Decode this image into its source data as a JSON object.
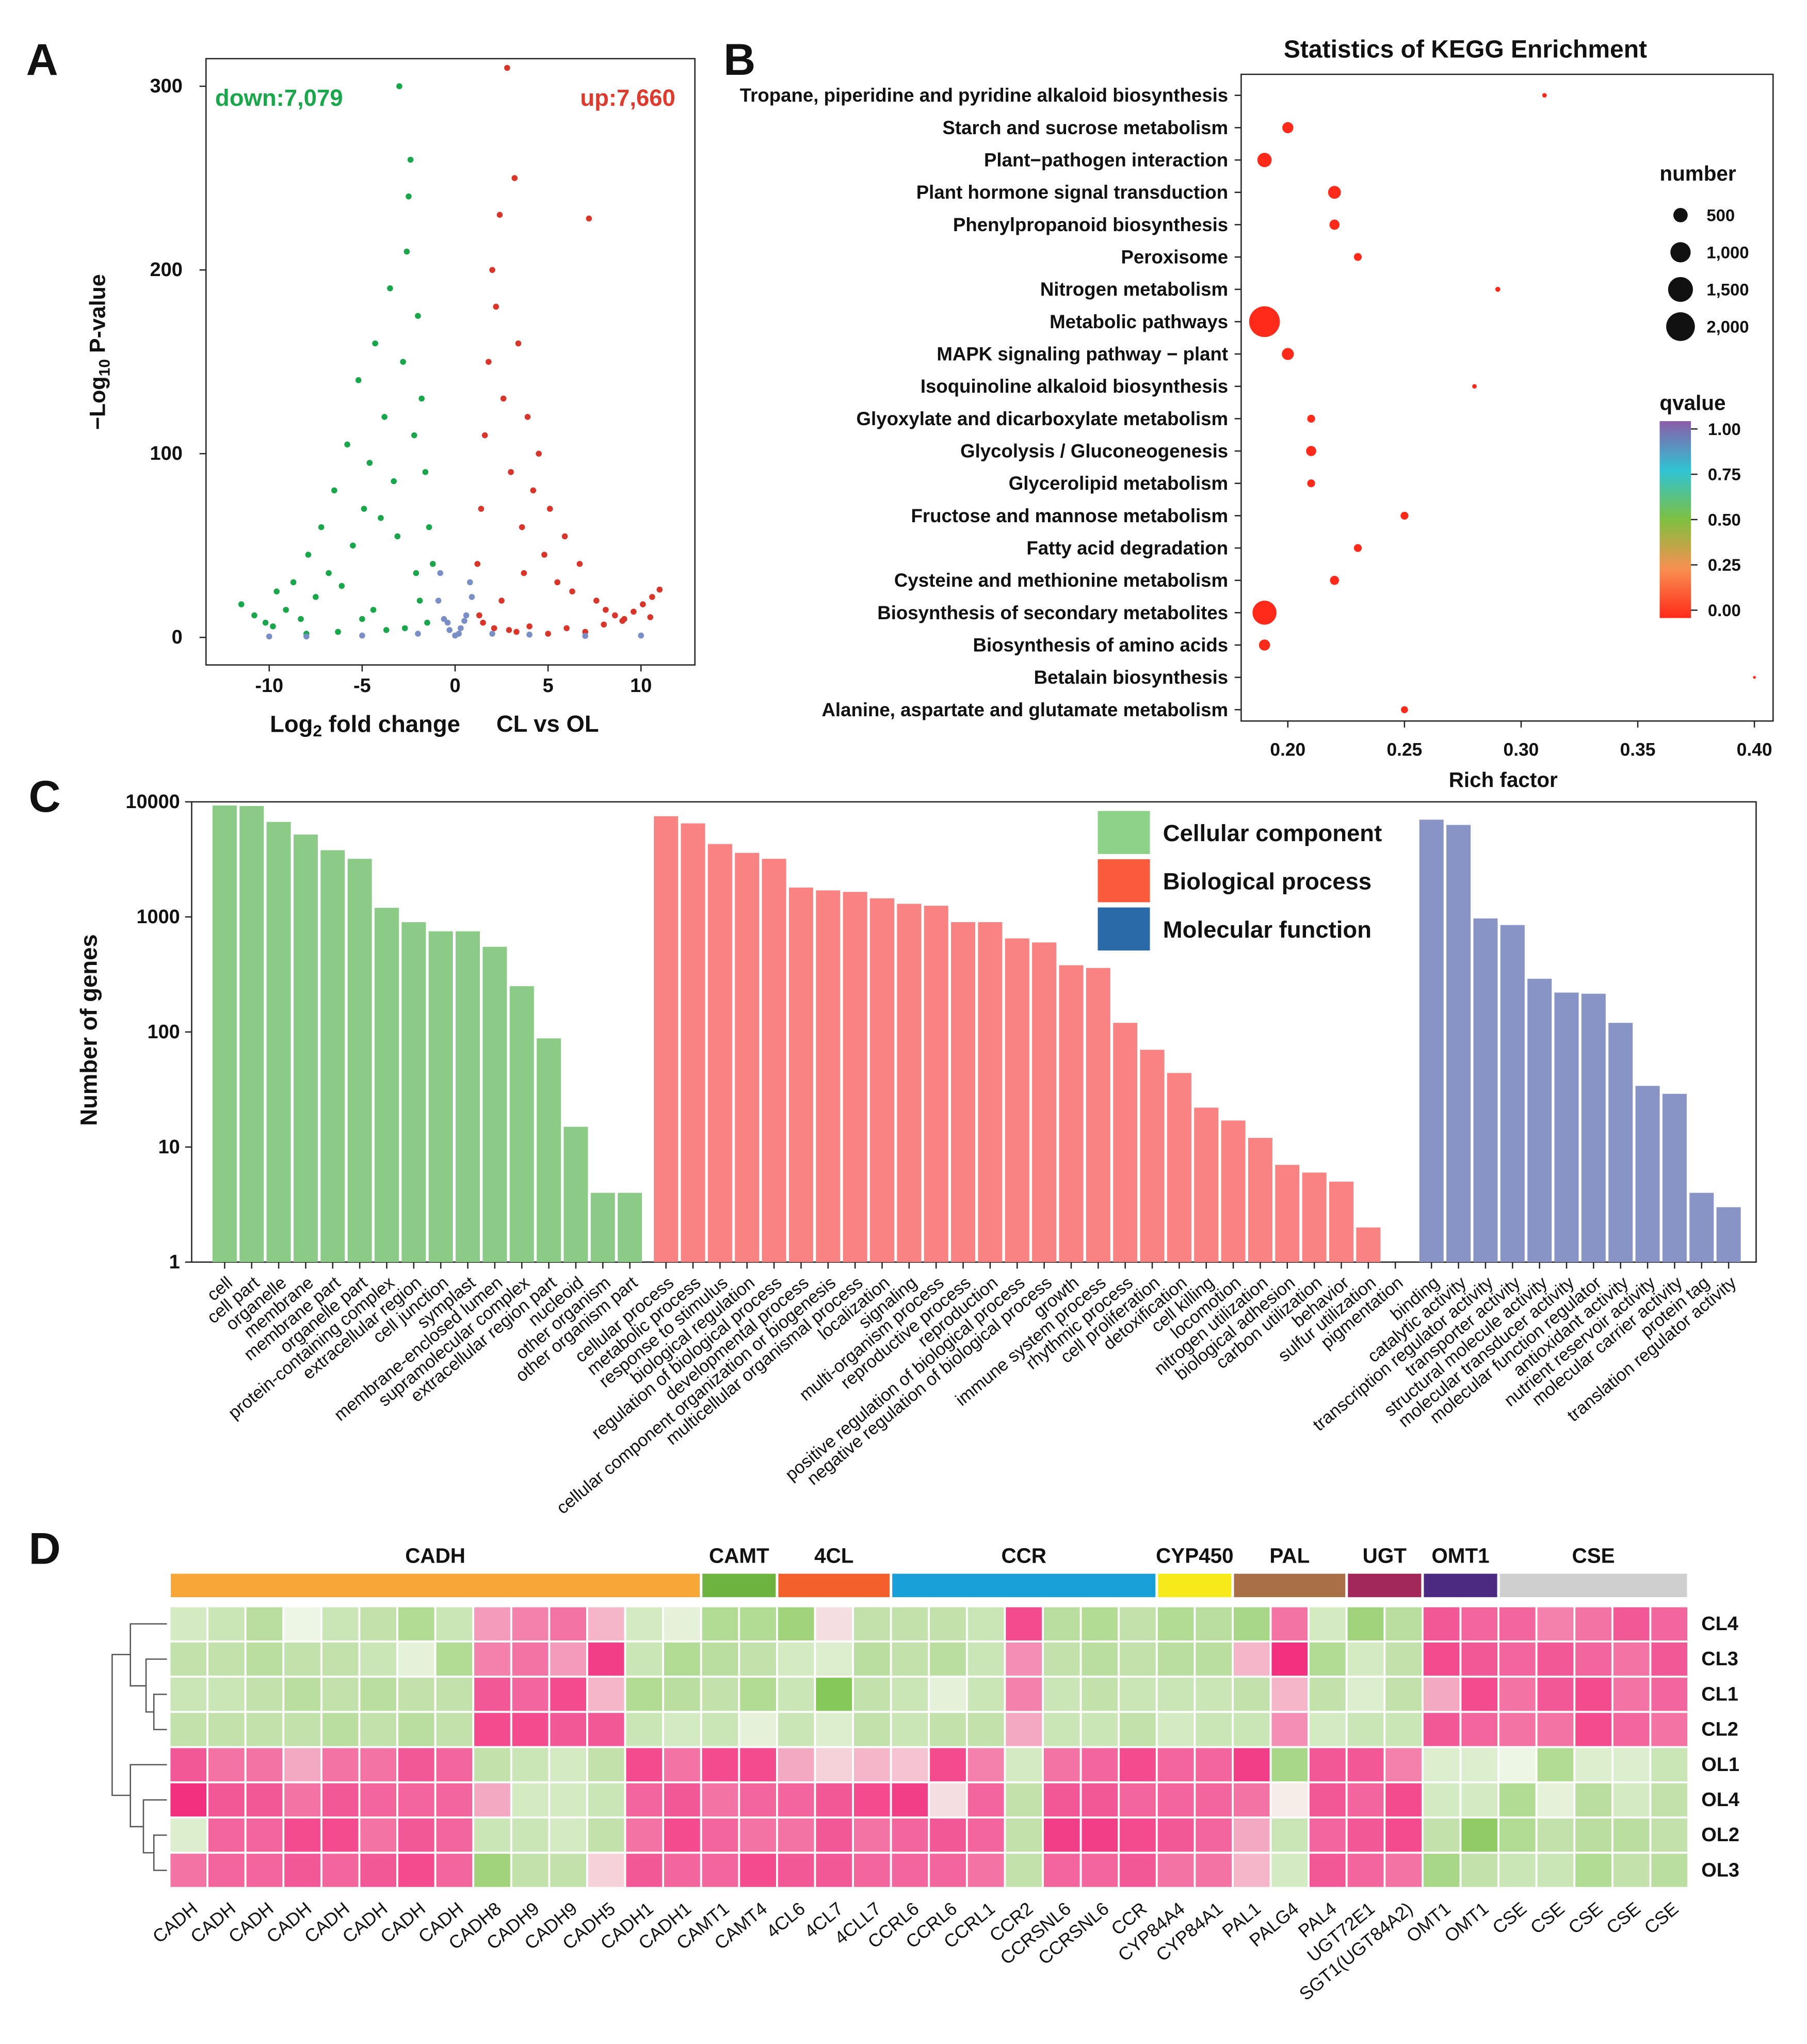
{
  "chart_data": [
    {
      "type": "scatter",
      "panel_label": "A",
      "y_label": {
        "text": "−Log",
        "sub": "10",
        "rest": " P-value"
      },
      "x_label": {
        "text": "Log",
        "sub": "2",
        "rest": " fold change"
      },
      "subtitle": "CL vs OL",
      "annotations": [
        {
          "text": "down:7,079",
          "color": "#1aa64a"
        },
        {
          "text": "up:7,660",
          "color": "#e03a2c"
        }
      ],
      "xlim": [
        -13.4,
        12.9
      ],
      "ylim": [
        -15,
        315
      ],
      "xticks": [
        -10,
        -5,
        0,
        5,
        10
      ],
      "yticks": [
        0,
        100,
        200,
        300
      ],
      "series": [
        {
          "name": "down",
          "color": "#1aa64a",
          "x": [
            -11.5,
            -10.8,
            -10.2,
            -9.6,
            -9.1,
            -8.7,
            -8.3,
            -7.9,
            -7.5,
            -7.2,
            -6.8,
            -6.5,
            -6.1,
            -5.8,
            -5.5,
            -5.2,
            -4.9,
            -4.6,
            -4.3,
            -4.0,
            -3.8,
            -3.5,
            -3.3,
            -3.0,
            -2.8,
            -2.6,
            -2.4,
            -2.2,
            -2.0,
            -1.8,
            -1.6,
            -1.4,
            -1.2,
            -2.5,
            -3.1,
            -2.1,
            -1.9,
            -4.4,
            -5.0,
            -2.7,
            -1.5,
            -3.7,
            -6.3,
            -8.0,
            -9.8
          ],
          "values": [
            18,
            12,
            8,
            25,
            15,
            30,
            10,
            45,
            22,
            60,
            35,
            80,
            28,
            105,
            50,
            140,
            70,
            95,
            160,
            65,
            120,
            190,
            85,
            300,
            150,
            210,
            260,
            110,
            175,
            130,
            90,
            60,
            40,
            240,
            55,
            35,
            20,
            15,
            10,
            5,
            8,
            4,
            3,
            2,
            6
          ]
        },
        {
          "name": "up",
          "color": "#d9352a",
          "x": [
            1.2,
            1.4,
            1.6,
            1.8,
            2.0,
            2.2,
            2.4,
            2.6,
            2.8,
            3.0,
            3.2,
            3.4,
            3.6,
            3.9,
            4.2,
            4.5,
            4.8,
            5.1,
            5.5,
            5.9,
            6.3,
            6.7,
            7.2,
            7.6,
            8.1,
            8.6,
            9.1,
            9.6,
            10.1,
            10.6,
            11.0,
            1.5,
            2.1,
            2.9,
            3.3,
            4.0,
            5.0,
            6.0,
            7.0,
            1.3,
            2.5,
            3.7,
            8.0,
            9.0,
            10.5
          ],
          "values": [
            40,
            70,
            110,
            150,
            200,
            180,
            230,
            130,
            310,
            90,
            250,
            160,
            60,
            120,
            80,
            100,
            45,
            70,
            30,
            55,
            25,
            40,
            228,
            20,
            15,
            12,
            10,
            14,
            18,
            22,
            26,
            8,
            5,
            4,
            3,
            6,
            2,
            5,
            3,
            12,
            20,
            35,
            7,
            9,
            11
          ]
        },
        {
          "name": "not significant",
          "color": "#7b8fc7",
          "x": [
            -0.9,
            -0.6,
            -0.3,
            0,
            0.3,
            0.6,
            0.9,
            -0.8,
            -0.4,
            0.2,
            0.5,
            0.8,
            -5,
            -8,
            4,
            7,
            -10,
            10,
            -2,
            2
          ],
          "values": [
            20,
            10,
            4,
            1,
            5,
            12,
            22,
            35,
            8,
            2,
            9,
            30,
            1,
            0.5,
            1.5,
            0.8,
            0.5,
            1,
            2,
            2
          ]
        }
      ]
    },
    {
      "type": "bubble",
      "panel_label": "B",
      "title": "Statistics of KEGG Enrichment",
      "x_label": "Rich factor",
      "categories": [
        "Tropane, piperidine and pyridine alkaloid biosynthesis",
        "Starch and sucrose metabolism",
        "Plant−pathogen interaction",
        "Plant hormone signal transduction",
        "Phenylpropanoid biosynthesis",
        "Peroxisome",
        "Nitrogen metabolism",
        "Metabolic pathways",
        "MAPK signaling pathway − plant",
        "Isoquinoline alkaloid biosynthesis",
        "Glyoxylate and dicarboxylate metabolism",
        "Glycolysis / Gluconeogenesis",
        "Glycerolipid metabolism",
        "Fructose and mannose metabolism",
        "Fatty acid degradation",
        "Cysteine and methionine metabolism",
        "Biosynthesis of secondary metabolites",
        "Biosynthesis of amino acids",
        "Betalain biosynthesis",
        "Alanine, aspartate and glutamate metabolism"
      ],
      "values": [
        0.31,
        0.2,
        0.19,
        0.22,
        0.22,
        0.23,
        0.29,
        0.19,
        0.2,
        0.28,
        0.21,
        0.21,
        0.21,
        0.25,
        0.23,
        0.22,
        0.19,
        0.19,
        0.4,
        0.25
      ],
      "sizes": [
        50,
        300,
        500,
        400,
        250,
        150,
        60,
        2300,
        350,
        50,
        150,
        250,
        150,
        150,
        150,
        200,
        1400,
        300,
        20,
        120
      ],
      "qvalues": [
        0,
        0,
        0,
        0,
        0,
        0,
        0,
        0,
        0,
        0,
        0,
        0,
        0,
        0,
        0,
        0,
        0,
        0,
        0,
        0
      ],
      "xlim": [
        0.18,
        0.408
      ],
      "xticks": [
        {
          "value": 0.2,
          "label": "0.20"
        },
        {
          "value": 0.25,
          "label": "0.25"
        },
        {
          "value": 0.3,
          "label": "0.30"
        },
        {
          "value": 0.35,
          "label": "0.35"
        },
        {
          "value": 0.4,
          "label": "0.40"
        }
      ],
      "size_title": "number",
      "size_ticks": [
        500,
        {
          "value": 1000,
          "label": "1,000"
        },
        {
          "value": 1500,
          "label": "1,500"
        },
        {
          "value": 2000,
          "label": "2,000"
        }
      ],
      "color_title": "qvalue",
      "clim": [
        0,
        1
      ],
      "cticks": [
        {
          "value": 1,
          "label": "1.00"
        },
        {
          "value": 0.75,
          "label": "0.75"
        },
        {
          "value": 0.5,
          "label": "0.50"
        },
        {
          "value": 0.25,
          "label": "0.25"
        },
        {
          "value": 0,
          "label": "0.00"
        }
      ],
      "colormap": [
        "#ff2a1a",
        "#f89050",
        "#7ec040",
        "#2fc4d4",
        "#8b5ca8"
      ]
    },
    {
      "type": "bar",
      "panel_label": "C",
      "y_label": "Number of genes",
      "log_scale": true,
      "ylim": [
        1,
        10000
      ],
      "yticks": [
        1,
        10,
        100,
        1000,
        10000
      ],
      "series": [
        {
          "name": "Cellular component",
          "color": "#8ccb87",
          "legend_color": "#8ed28a",
          "categories": [
            "cell",
            "cell part",
            "organelle",
            "membrane",
            "membrane part",
            "organelle part",
            "protein-containing complex",
            "extracellular region",
            "cell junction",
            "symplast",
            "membrane-enclosed lumen",
            "supramolecular complex",
            "extracellular region part",
            "nucleoid",
            "other organism",
            "other organism part"
          ],
          "values": [
            9300,
            9200,
            6700,
            5200,
            3800,
            3200,
            1200,
            900,
            750,
            750,
            550,
            250,
            88,
            15,
            4,
            4
          ]
        },
        {
          "name": "Biological process",
          "color": "#f98282",
          "legend_color": "#fb5a3c",
          "categories": [
            "cellular process",
            "metabolic process",
            "response to stimulus",
            "biological regulation",
            "regulation of biological process",
            "developmental process",
            "cellular component organization or biogenesis",
            "multicellular organismal process",
            "localization",
            "signaling",
            "multi-organism process",
            "reproductive process",
            "reproduction",
            "positive regulation of biological process",
            "negative regulation of biological process",
            "growth",
            "immune system process",
            "rhythmic process",
            "cell proliferation",
            "detoxification",
            "cell killing",
            "locomotion",
            "nitrogen utilization",
            "biological adhesion",
            "carbon utilization",
            "behavior",
            "sulfur utilization",
            "pigmentation"
          ],
          "values": [
            7500,
            6500,
            4300,
            3600,
            3200,
            1800,
            1700,
            1650,
            1450,
            1300,
            1250,
            900,
            900,
            650,
            600,
            380,
            360,
            120,
            70,
            44,
            22,
            17,
            12,
            7,
            6,
            5,
            2,
            1
          ]
        },
        {
          "name": "Molecular function",
          "color": "#8893c6",
          "legend_color": "#2b6aa8",
          "categories": [
            "binding",
            "catalytic activity",
            "transcription regulator activity",
            "transporter activity",
            "structural molecule activity",
            "molecular transducer activity",
            "molecular function regulator",
            "antioxidant activity",
            "nutrient reservoir activity",
            "molecular carrier activity",
            "protein tag",
            "translation regulator activity"
          ],
          "values": [
            7000,
            6300,
            970,
            850,
            290,
            220,
            215,
            120,
            34,
            29,
            4,
            3
          ]
        }
      ]
    },
    {
      "type": "heatmap",
      "panel_label": "D",
      "rows": [
        "CL4",
        "CL3",
        "CL1",
        "CL2",
        "OL1",
        "OL4",
        "OL2",
        "OL3"
      ],
      "columns": [
        "CADH",
        "CADH",
        "CADH",
        "CADH",
        "CADH",
        "CADH",
        "CADH",
        "CADH",
        "CADH8",
        "CADH9",
        "CADH9",
        "CADH5",
        "CADH1",
        "CADH1",
        "CAMT1",
        "CAMT4",
        "4CL6",
        "4CL7",
        "4CLL7",
        "CCRL6",
        "CCRL6",
        "CCRL1",
        "CCR2",
        "CCRSNL6",
        "CCRSNL6",
        "CCR",
        "CYP84A4",
        "CYP84A1",
        "PAL1",
        "PALG4",
        "PAL4",
        "UGT72E1",
        "SGT1(UGT84A2)",
        "OMT1",
        "OMT1",
        "CSE",
        "CSE",
        "CSE",
        "CSE",
        "CSE"
      ],
      "groups": [
        {
          "name": "CADH",
          "color": "#f7a738",
          "count": 14
        },
        {
          "name": "CAMT",
          "color": "#6db33f",
          "count": 2
        },
        {
          "name": "4CL",
          "color": "#f4602c",
          "count": 3
        },
        {
          "name": "CCR",
          "color": "#1aa0d8",
          "count": 7
        },
        {
          "name": "CYP450",
          "color": "#f6ea1b",
          "count": 2
        },
        {
          "name": "PAL",
          "color": "#a97048",
          "count": 3
        },
        {
          "name": "UGT",
          "color": "#a3285a",
          "count": 2
        },
        {
          "name": "OMT1",
          "color": "#4c2a82",
          "count": 2
        },
        {
          "name": "CSE",
          "color": "#cfcfcf",
          "count": 5
        }
      ],
      "clim": [
        -1.5,
        1.5
      ],
      "color_low": "#76c043",
      "color_mid": "#f6f9f0",
      "color_high": "#f2307f",
      "values": [
        [
          -0.4,
          -0.5,
          -0.7,
          -0.1,
          -0.5,
          -0.6,
          -0.8,
          -0.5,
          0.7,
          0.9,
          1.0,
          0.5,
          -0.4,
          -0.2,
          -0.8,
          -0.8,
          -1.0,
          0.2,
          -0.6,
          -0.6,
          -0.6,
          -0.5,
          1.3,
          -0.7,
          -0.8,
          -0.6,
          -0.8,
          -0.7,
          -0.9,
          1.0,
          -0.4,
          -1.0,
          -0.7,
          1.2,
          1.1,
          1.1,
          0.9,
          1.0,
          1.2,
          1.1
        ],
        [
          -0.6,
          -0.6,
          -0.7,
          -0.6,
          -0.6,
          -0.5,
          -0.2,
          -0.8,
          0.9,
          1.0,
          0.7,
          1.4,
          -0.5,
          -0.8,
          -0.7,
          -0.6,
          -0.4,
          -0.3,
          -0.7,
          -0.6,
          -0.7,
          -0.5,
          0.8,
          -0.6,
          -0.7,
          -0.6,
          -0.7,
          -0.7,
          0.5,
          1.5,
          -0.8,
          -0.4,
          -0.6,
          1.3,
          1.2,
          1.1,
          1.2,
          1.1,
          1.0,
          1.2
        ],
        [
          -0.5,
          -0.5,
          -0.6,
          -0.7,
          -0.6,
          -0.7,
          -0.6,
          -0.6,
          1.2,
          1.1,
          1.3,
          0.5,
          -0.8,
          -0.7,
          -0.6,
          -0.8,
          -0.5,
          -1.3,
          -0.6,
          -0.5,
          -0.2,
          -0.5,
          0.9,
          -0.5,
          -0.6,
          -0.5,
          -0.5,
          -0.5,
          -0.6,
          0.5,
          -0.6,
          -0.3,
          -0.6,
          0.6,
          1.3,
          1.0,
          1.2,
          1.3,
          1.0,
          1.1
        ],
        [
          -0.6,
          -0.6,
          -0.6,
          -0.6,
          -0.7,
          -0.6,
          -0.7,
          -0.6,
          1.3,
          1.3,
          1.2,
          1.2,
          -0.5,
          -0.4,
          -0.5,
          -0.2,
          -0.5,
          -0.3,
          -0.6,
          -0.5,
          -0.6,
          -0.6,
          0.6,
          -0.5,
          -0.5,
          -0.6,
          -0.4,
          -0.5,
          -0.5,
          0.8,
          -0.4,
          -0.5,
          -0.5,
          1.2,
          1.1,
          1.0,
          1.0,
          1.3,
          1.1,
          1.0
        ],
        [
          1.2,
          1.0,
          1.0,
          0.6,
          1.0,
          1.0,
          1.2,
          1.1,
          -0.6,
          -0.5,
          -0.4,
          -0.6,
          1.3,
          1.0,
          1.3,
          1.3,
          0.6,
          0.3,
          0.5,
          0.4,
          1.3,
          0.9,
          -0.4,
          1.0,
          1.1,
          1.3,
          1.1,
          1.1,
          1.4,
          -0.9,
          1.2,
          1.2,
          0.9,
          -0.3,
          -0.3,
          -0.1,
          -0.8,
          -0.3,
          -0.3,
          -0.5
        ],
        [
          1.5,
          1.2,
          1.2,
          1.0,
          1.2,
          1.1,
          1.1,
          1.1,
          0.6,
          -0.4,
          -0.4,
          -0.5,
          1.1,
          1.2,
          1.0,
          1.1,
          1.1,
          1.2,
          1.3,
          1.4,
          0.2,
          1.1,
          -0.6,
          1.2,
          1.2,
          1.1,
          1.1,
          1.1,
          1.0,
          0.1,
          1.2,
          1.1,
          1.3,
          -0.4,
          -0.4,
          -0.8,
          -0.2,
          -0.7,
          -0.4,
          -0.6
        ],
        [
          -0.3,
          1.1,
          1.1,
          1.3,
          1.3,
          1.0,
          1.2,
          1.1,
          -0.5,
          -0.5,
          -0.4,
          -0.6,
          1.0,
          1.3,
          1.1,
          1.0,
          1.0,
          1.2,
          1.0,
          1.1,
          1.2,
          1.1,
          -0.6,
          1.4,
          1.4,
          1.3,
          1.2,
          1.1,
          0.6,
          -0.5,
          1.1,
          1.2,
          1.3,
          -0.6,
          -1.2,
          -0.8,
          -0.6,
          -0.7,
          -0.7,
          -0.6
        ],
        [
          1.0,
          1.1,
          1.1,
          1.2,
          1.1,
          1.2,
          1.3,
          1.1,
          -1.0,
          -0.6,
          -0.6,
          0.3,
          1.2,
          1.1,
          1.1,
          1.3,
          1.2,
          1.2,
          1.1,
          1.1,
          1.1,
          1.0,
          -0.6,
          1.1,
          1.1,
          1.2,
          1.0,
          1.0,
          0.5,
          -0.4,
          1.2,
          1.1,
          1.0,
          -0.9,
          -0.6,
          -0.5,
          -0.5,
          -0.8,
          -0.6,
          -0.7
        ]
      ]
    }
  ]
}
